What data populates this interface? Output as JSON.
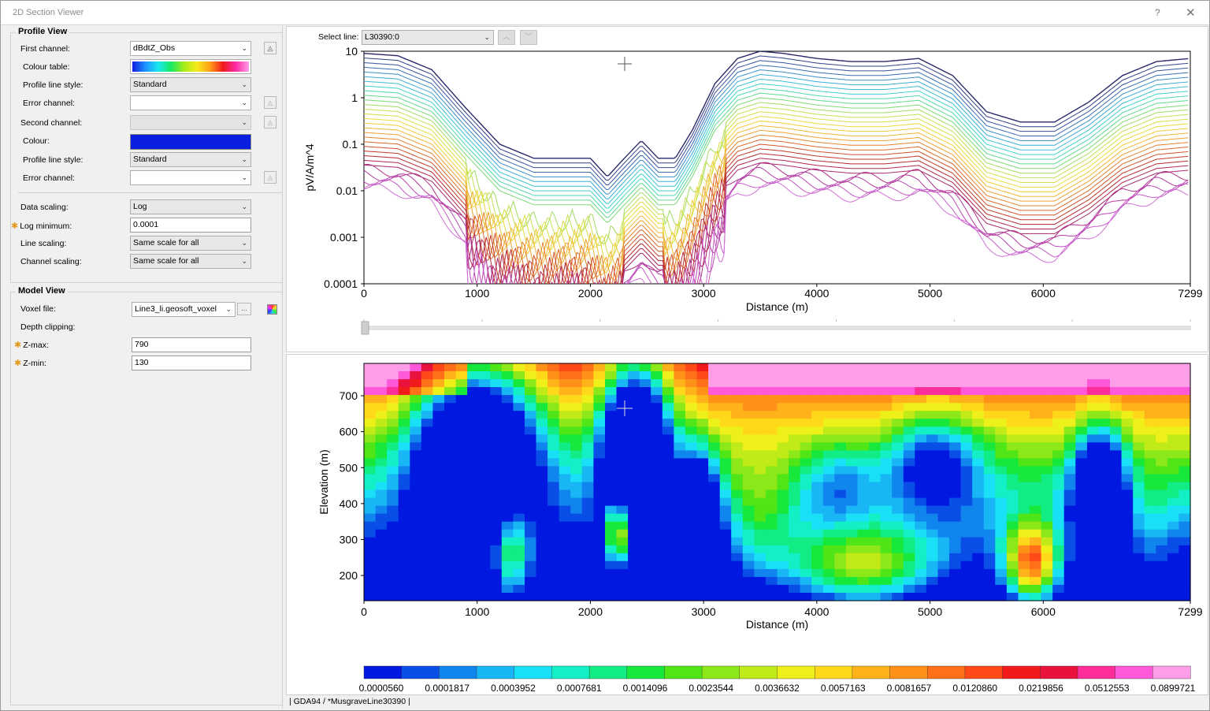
{
  "window": {
    "title": "2D Section Viewer",
    "help": "?",
    "close": "✕"
  },
  "profile_view": {
    "header": "Profile View",
    "first_channel": {
      "label": "First channel:",
      "value": "dBdtZ_Obs"
    },
    "colour_table": {
      "label": "Colour table:"
    },
    "profile_line_style": {
      "label": "Profile line style:",
      "value": "Standard"
    },
    "error_channel": {
      "label": "Error channel:",
      "value": ""
    },
    "second_channel": {
      "label": "Second channel:",
      "value": ""
    },
    "colour": {
      "label": "Colour:",
      "value": "#0a1fe0"
    },
    "profile_line_style2": {
      "label": "Profile line style:",
      "value": "Standard"
    },
    "error_channel2": {
      "label": "Error channel:",
      "value": ""
    },
    "data_scaling": {
      "label": "Data scaling:",
      "value": "Log"
    },
    "log_minimum": {
      "label": "Log minimum:",
      "value": "0.0001"
    },
    "line_scaling": {
      "label": "Line scaling:",
      "value": "Same scale for all"
    },
    "channel_scaling": {
      "label": "Channel scaling:",
      "value": "Same scale for all"
    }
  },
  "model_view": {
    "header": "Model View",
    "voxel_file": {
      "label": "Voxel file:",
      "value": "Line3_li.geosoft_voxel",
      "browse": "..."
    },
    "depth_clipping": {
      "label": "Depth clipping:"
    },
    "z_max": {
      "label": "Z-max:",
      "value": "790"
    },
    "z_min": {
      "label": "Z-min:",
      "value": "130"
    }
  },
  "select_line": {
    "label": "Select line:",
    "value": "L30390:0"
  },
  "status": "| GDA94 / *MusgraveLine30390 |",
  "chart_data": [
    {
      "type": "line",
      "xlabel": "Distance (m)",
      "ylabel": "pV/A/m^4",
      "y_scale": "log",
      "xlim": [
        0,
        7299
      ],
      "ylim": [
        0.0001,
        10
      ],
      "x_ticks": [
        "0",
        "1000",
        "2000",
        "3000",
        "4000",
        "5000",
        "6000",
        "7299"
      ],
      "y_ticks": [
        "10",
        "1",
        "0.1",
        "0.01",
        "0.001",
        "0.0001"
      ],
      "series_count": 30,
      "top_series": {
        "x": [
          0,
          300,
          600,
          900,
          1200,
          1500,
          1800,
          2000,
          2150,
          2300,
          2450,
          2600,
          2750,
          2900,
          3100,
          3300,
          3500,
          3700,
          4000,
          4300,
          4600,
          4900,
          5200,
          5500,
          5800,
          6100,
          6400,
          6700,
          7000,
          7299
        ],
        "y": [
          9,
          8,
          4,
          0.6,
          0.1,
          0.05,
          0.05,
          0.05,
          0.02,
          0.05,
          0.12,
          0.05,
          0.05,
          0.2,
          2,
          7,
          10,
          9,
          7,
          6,
          6,
          7,
          3,
          0.5,
          0.3,
          0.3,
          0.8,
          3,
          6,
          7
        ]
      }
    },
    {
      "type": "heatmap",
      "xlabel": "Distance (m)",
      "ylabel": "Elevation (m)",
      "xlim": [
        0,
        7299
      ],
      "ylim": [
        130,
        790
      ],
      "x_ticks": [
        "0",
        "1000",
        "2000",
        "3000",
        "4000",
        "5000",
        "6000",
        "7299"
      ],
      "y_ticks": [
        "700",
        "600",
        "500",
        "400",
        "300",
        "200"
      ],
      "colorbar_labels": [
        "0.0000560",
        "0.0001817",
        "0.0003952",
        "0.0007681",
        "0.0014096",
        "0.0023544",
        "0.0036632",
        "0.0057163",
        "0.0081657",
        "0.0120860",
        "0.0219856",
        "0.0512553",
        "0.0899721"
      ],
      "colorbar_colors": [
        "#0018e0",
        "#0a4ee8",
        "#1185ee",
        "#18b6f4",
        "#19e0f6",
        "#13f0c6",
        "#12ec84",
        "#17e83c",
        "#4fe517",
        "#8de81a",
        "#c0eb18",
        "#eef01a",
        "#ffd81a",
        "#ffb21a",
        "#ff9118",
        "#ff7018",
        "#ff4a18",
        "#f21a1a",
        "#e8123c",
        "#ff2d9a",
        "#ff58d8",
        "#ff9ee8"
      ]
    }
  ]
}
